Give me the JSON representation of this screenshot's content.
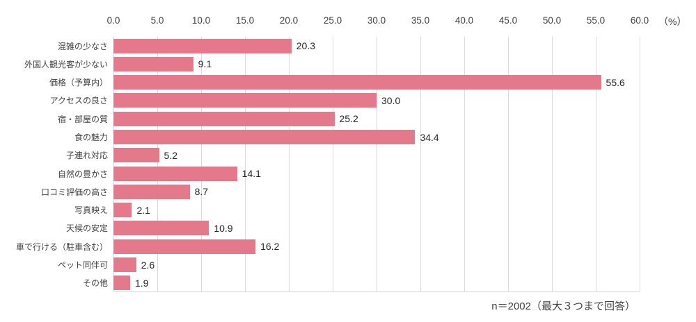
{
  "chart_data": {
    "type": "bar",
    "orientation": "horizontal",
    "title": "",
    "xlabel": "",
    "ylabel": "",
    "unit_label": "（%）",
    "xlim": [
      0,
      60
    ],
    "xtick_step": 5,
    "xticks": [
      "0.0",
      "5.0",
      "10.0",
      "15.0",
      "20.0",
      "25.0",
      "30.0",
      "35.0",
      "40.0",
      "45.0",
      "50.0",
      "55.0",
      "60.0"
    ],
    "grid": "vertical-gridlines-on",
    "legend": "none",
    "categories": [
      "混雑の少なさ",
      "外国人観光客が少ない",
      "価格（予算内）",
      "アクセスの良さ",
      "宿・部屋の質",
      "食の魅力",
      "子連れ対応",
      "自然の豊かさ",
      "口コミ評価の高さ",
      "写真映え",
      "天候の安定",
      "車で行ける（駐車含む）",
      "ペット同伴可",
      "その他"
    ],
    "values": [
      20.3,
      9.1,
      55.6,
      30.0,
      25.2,
      34.4,
      5.2,
      14.1,
      8.7,
      2.1,
      10.9,
      16.2,
      2.6,
      1.9
    ],
    "value_labels": [
      "20.3",
      "9.1",
      "55.6",
      "30.0",
      "25.2",
      "34.4",
      "5.2",
      "14.1",
      "8.7",
      "2.1",
      "10.9",
      "16.2",
      "2.6",
      "1.9"
    ],
    "note": "n＝2002（最大３つまで回答）",
    "colors": {
      "bar": "#e5798c",
      "gridline": "#d9d9d9",
      "tick_text": "#404040",
      "category_text": "#404040",
      "value_text": "#262626",
      "note_text": "#404040",
      "background": "#ffffff"
    }
  }
}
